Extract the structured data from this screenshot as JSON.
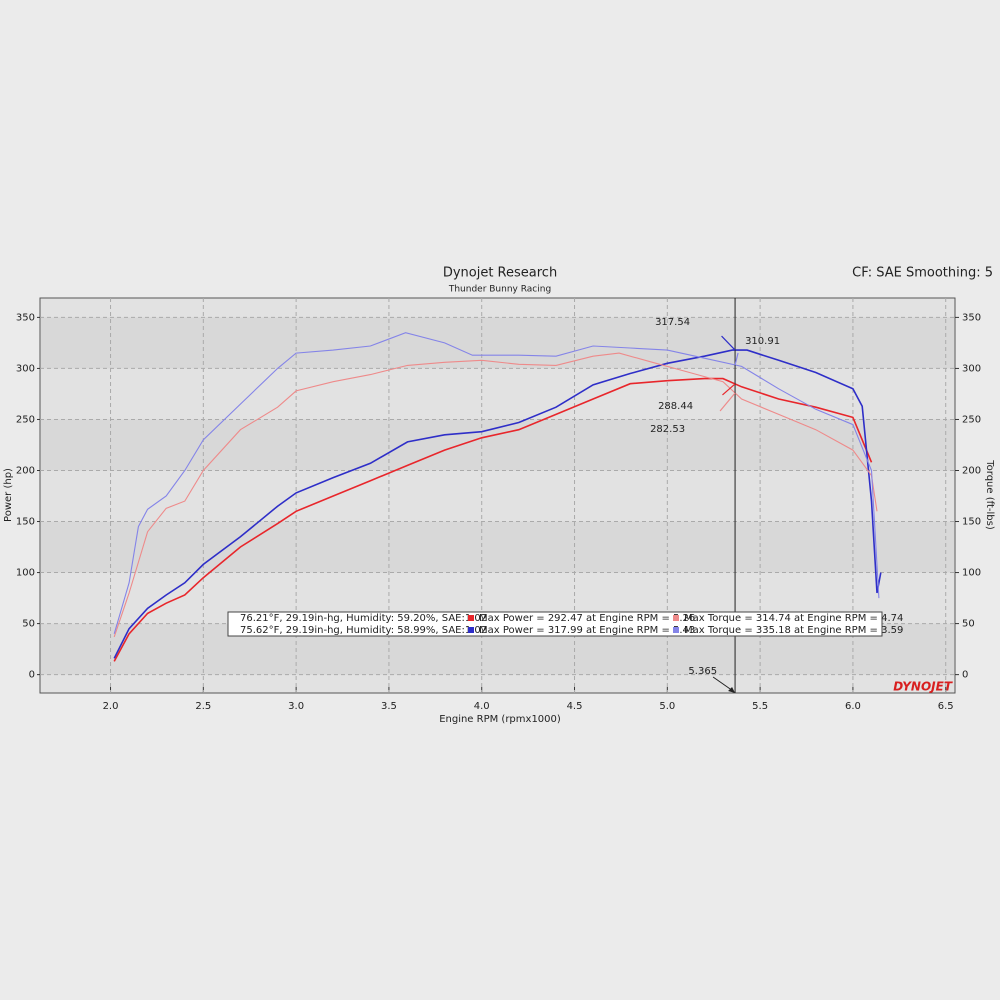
{
  "chart_data": {
    "type": "line",
    "title": "Dynojet Research",
    "subtitle": "Thunder Bunny Racing",
    "settings_label": "CF: SAE Smoothing: 5",
    "logo": "DYNOJET",
    "x_label": "Engine RPM (rpmx1000)",
    "y_label": "Power (hp)",
    "y2_label": "Torque (ft-lbs)",
    "xlim": [
      1.62,
      6.55
    ],
    "ylim": [
      -18,
      369
    ],
    "y2lim": [
      -18,
      369
    ],
    "xticks": [
      {
        "value": 2,
        "label": "2.0"
      },
      2.5,
      {
        "value": 3,
        "label": "3.0"
      },
      3.5,
      {
        "value": 4,
        "label": "4.0"
      },
      4.5,
      {
        "value": 5,
        "label": "5.0"
      },
      5.5,
      {
        "value": 6,
        "label": "6.0"
      },
      6.5
    ],
    "yticks": [
      0,
      50,
      100,
      150,
      200,
      250,
      300,
      350
    ],
    "y2ticks": [
      0,
      50,
      100,
      150,
      200,
      250,
      300,
      350
    ],
    "grid": true,
    "cursor_x": 5.365,
    "series": [
      {
        "color": "#e8262b",
        "width": 1.6,
        "x": [
          2.02,
          2.1,
          2.2,
          2.3,
          2.4,
          2.5,
          2.7,
          2.9,
          3.0,
          3.2,
          3.4,
          3.6,
          3.8,
          4.0,
          4.2,
          4.4,
          4.6,
          4.8,
          5.0,
          5.2,
          5.3,
          5.4,
          5.6,
          5.8,
          6.0,
          6.1
        ],
        "values": [
          13,
          40,
          60,
          70,
          78,
          95,
          125,
          148,
          160,
          175,
          190,
          205,
          220,
          232,
          240,
          255,
          270,
          285,
          288,
          290,
          290,
          282,
          270,
          262,
          252,
          208
        ]
      },
      {
        "color": "#2e2ec8",
        "width": 1.6,
        "x": [
          2.02,
          2.1,
          2.2,
          2.3,
          2.4,
          2.5,
          2.7,
          2.9,
          3.0,
          3.2,
          3.4,
          3.6,
          3.8,
          4.0,
          4.2,
          4.4,
          4.6,
          4.8,
          5.0,
          5.2,
          5.35,
          5.43,
          5.6,
          5.8,
          6.0,
          6.05,
          6.1,
          6.13,
          6.15
        ],
        "values": [
          16,
          45,
          65,
          78,
          90,
          108,
          135,
          165,
          178,
          193,
          207,
          228,
          235,
          238,
          247,
          262,
          284,
          295,
          305,
          312,
          318,
          318,
          308,
          296,
          280,
          263,
          170,
          80,
          100
        ]
      },
      {
        "color": "#ee8a8a",
        "width": 1.1,
        "axis": "y2",
        "x": [
          2.02,
          2.1,
          2.2,
          2.3,
          2.4,
          2.5,
          2.7,
          2.9,
          3.0,
          3.2,
          3.4,
          3.6,
          3.8,
          4.0,
          4.2,
          4.4,
          4.6,
          4.74,
          4.9,
          5.1,
          5.3,
          5.4,
          5.6,
          5.8,
          6.0,
          6.1,
          6.13
        ],
        "values": [
          37,
          80,
          140,
          163,
          170,
          200,
          240,
          262,
          278,
          287,
          294,
          303,
          306,
          308,
          304,
          303,
          312,
          315,
          307,
          297,
          287,
          270,
          255,
          240,
          220,
          195,
          160
        ]
      },
      {
        "color": "#8484e8",
        "width": 1.1,
        "axis": "y2",
        "x": [
          2.02,
          2.1,
          2.15,
          2.2,
          2.3,
          2.4,
          2.5,
          2.7,
          2.9,
          3.0,
          3.2,
          3.4,
          3.59,
          3.8,
          3.95,
          4.2,
          4.4,
          4.6,
          4.8,
          5.0,
          5.2,
          5.4,
          5.6,
          5.8,
          6.0,
          6.1,
          6.14
        ],
        "values": [
          40,
          90,
          145,
          162,
          175,
          200,
          230,
          265,
          300,
          315,
          318,
          322,
          335,
          325,
          313,
          313,
          312,
          322,
          320,
          318,
          310,
          302,
          280,
          260,
          245,
          200,
          75
        ]
      }
    ],
    "annotations": [
      "288.44",
      "317.54",
      "282.53",
      "310.91"
    ],
    "legend_rows": [
      {
        "conditions": "76.21°F, 29.19in-hg, Humidity: 59.20%, SAE:1.02",
        "power": "Max Power = 292.47 at Engine RPM = 5.26",
        "torque": "Max Torque = 314.74 at Engine RPM = 4.74"
      },
      {
        "conditions": "75.62°F, 29.19in-hg, Humidity: 58.99%, SAE:1.02",
        "power": "Max Power = 317.99 at Engine RPM = 5.43",
        "torque": "Max Torque = 335.18 at Engine RPM = 3.59"
      }
    ]
  }
}
